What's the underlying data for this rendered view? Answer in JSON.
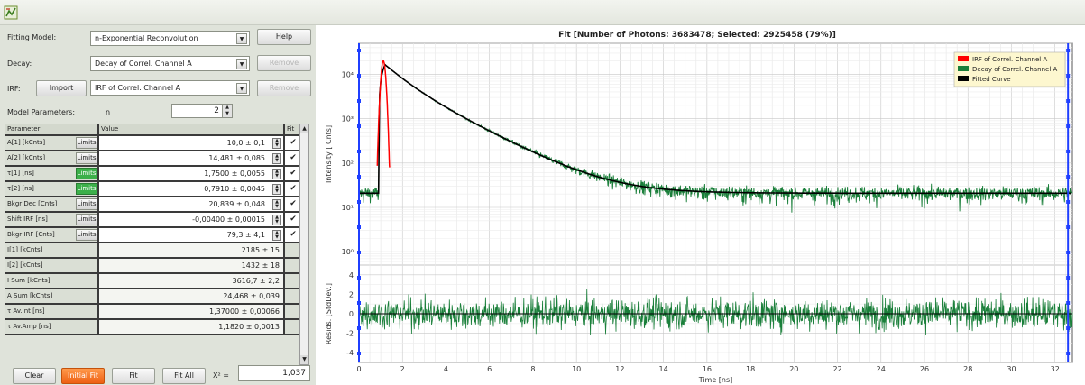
{
  "window": {
    "icon": "app-icon"
  },
  "panel": {
    "fitting_model_label": "Fitting Model:",
    "fitting_model_value": "n-Exponential Reconvolution",
    "help_label": "Help",
    "decay_label": "Decay:",
    "decay_value": "Decay of Correl. Channel A",
    "remove_label": "Remove",
    "irf_label": "IRF:",
    "import_label": "Import",
    "irf_value": "IRF of Correl. Channel A",
    "model_params_label": "Model Parameters:",
    "n_label": "n",
    "n_value": "2",
    "table_headers": {
      "parameter": "Parameter",
      "value": "Value",
      "fit": "Fit"
    },
    "limits_label": "Limits",
    "params": [
      {
        "name": "A[1] [kCnts]",
        "value": "10,0 ± 0,1",
        "green": false,
        "fit": "✔"
      },
      {
        "name": "A[2] [kCnts]",
        "value": "14,481 ± 0,085",
        "green": false,
        "fit": "✔"
      },
      {
        "name": "τ[1] [ns]",
        "value": "1,7500 ± 0,0055",
        "green": true,
        "fit": "✔"
      },
      {
        "name": "τ[2] [ns]",
        "value": "0,7910 ± 0,0045",
        "green": true,
        "fit": "✔"
      },
      {
        "name": "Bkgr Dec [Cnts]",
        "value": "20,839 ± 0,048",
        "green": false,
        "fit": "✔"
      },
      {
        "name": "Shift IRF [ns]",
        "value": "-0,00400 ± 0,00015",
        "green": false,
        "fit": "✔"
      },
      {
        "name": "Bkgr IRF [Cnts]",
        "value": "79,3 ± 4,1",
        "green": false,
        "fit": "✔"
      }
    ],
    "derived": [
      {
        "name": "I[1] [kCnts]",
        "value": "2185 ± 15"
      },
      {
        "name": "I[2] [kCnts]",
        "value": "1432 ± 18"
      },
      {
        "name": "I Sum [kCnts]",
        "value": "3616,7 ± 2,2"
      },
      {
        "name": "A Sum [kCnts]",
        "value": "24,468 ± 0,039"
      },
      {
        "name": "τ Av.Int [ns]",
        "value": "1,37000 ± 0,00066"
      },
      {
        "name": "τ Av.Amp [ns]",
        "value": "1,1820 ± 0,0013"
      }
    ],
    "clear_label": "Clear",
    "initial_fit_label": "Initial Fit",
    "fit_label": "Fit",
    "fit_all_label": "Fit All",
    "chi2_label": "X² =",
    "chi2_value": "1,037"
  },
  "chart_data": [
    {
      "type": "line",
      "title": "Fit [Number of Photons: 3683478; Selected: 2925458 (79%)]",
      "ylabel": "Intensity [ Cnts]",
      "y_scale": "log",
      "ylim": [
        0.5,
        50000
      ],
      "y_ticks": [
        "10⁰",
        "10¹",
        "10²",
        "10³",
        "10⁴"
      ],
      "xlim": [
        0,
        32.8
      ],
      "grid": true,
      "legend_position": "top-right",
      "series": [
        {
          "name": "IRF of Correl. Channel A",
          "color": "#ff0000",
          "peak": 20000,
          "x_range": [
            0.84,
            1.42
          ]
        },
        {
          "name": "Decay of Correl. Channel A",
          "color": "#1a7f3a",
          "peak": 22000,
          "background": 20.8
        },
        {
          "name": "Fitted Curve",
          "color": "#000000",
          "amplitudes": [
            10000,
            14481
          ],
          "taus": [
            1.75,
            0.791
          ],
          "background": 20.839
        }
      ],
      "range_markers_x": [
        0,
        32.6
      ]
    },
    {
      "type": "line",
      "ylabel": "Resids. [StdDev.]",
      "ylim": [
        -5,
        5
      ],
      "y_ticks": [
        "-4",
        "-2",
        "0",
        "2",
        "4"
      ],
      "xlabel": "Time [ns]",
      "x_ticks": [
        "0",
        "2",
        "4",
        "6",
        "8",
        "10",
        "12",
        "14",
        "16",
        "18",
        "20",
        "22",
        "24",
        "26",
        "28",
        "30",
        "32"
      ],
      "xlim": [
        0,
        32.8
      ],
      "grid": true,
      "series": [
        {
          "color": "#1a7f3a",
          "noise_sd": 1.1
        }
      ]
    }
  ]
}
